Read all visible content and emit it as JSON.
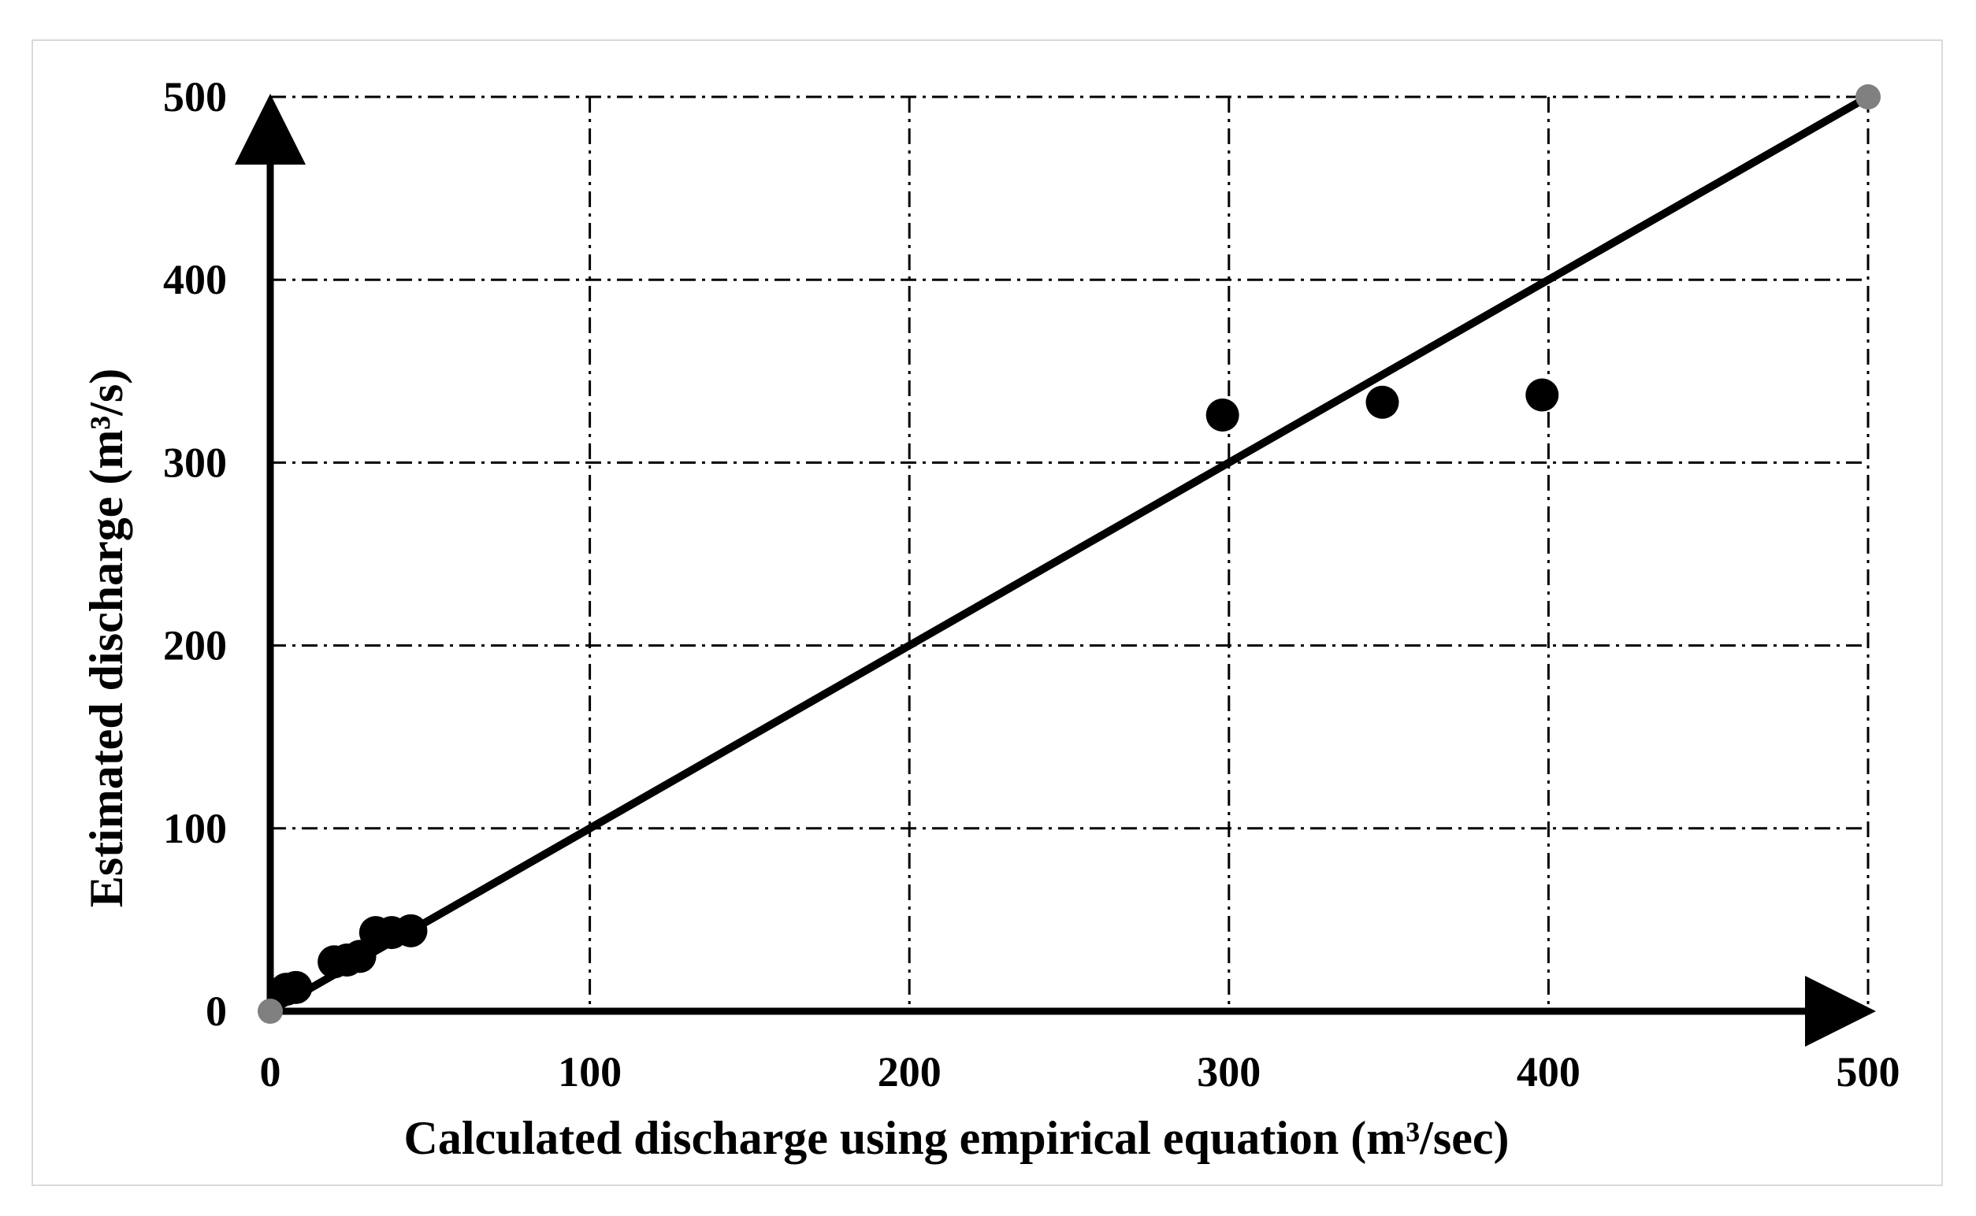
{
  "chart_data": {
    "type": "scatter",
    "title": "",
    "xlabel": "Calculated discharge using empirical equation (m³/sec)",
    "ylabel": "Estimated discharge (m³/s)",
    "xlim": [
      0,
      500
    ],
    "ylim": [
      0,
      500
    ],
    "x_ticks": [
      "0",
      "100",
      "200",
      "300",
      "400",
      "500"
    ],
    "y_ticks": [
      "0",
      "100",
      "200",
      "300",
      "400",
      "500"
    ],
    "grid": true,
    "legend": "none",
    "series": [
      {
        "kind": "scatter",
        "color": "#000000",
        "points": [
          [
            5,
            12
          ],
          [
            8,
            13
          ],
          [
            20,
            27
          ],
          [
            24,
            28
          ],
          [
            28,
            30
          ],
          [
            33,
            43
          ],
          [
            38,
            43
          ],
          [
            44,
            44
          ],
          [
            298,
            326
          ],
          [
            348,
            333
          ],
          [
            398,
            337
          ]
        ]
      },
      {
        "kind": "line",
        "color": "#000000",
        "points": [
          [
            0,
            0
          ],
          [
            500,
            500
          ]
        ]
      },
      {
        "kind": "endpoints",
        "color": "#808080",
        "points": [
          [
            0,
            0
          ],
          [
            500,
            500
          ]
        ]
      }
    ]
  }
}
